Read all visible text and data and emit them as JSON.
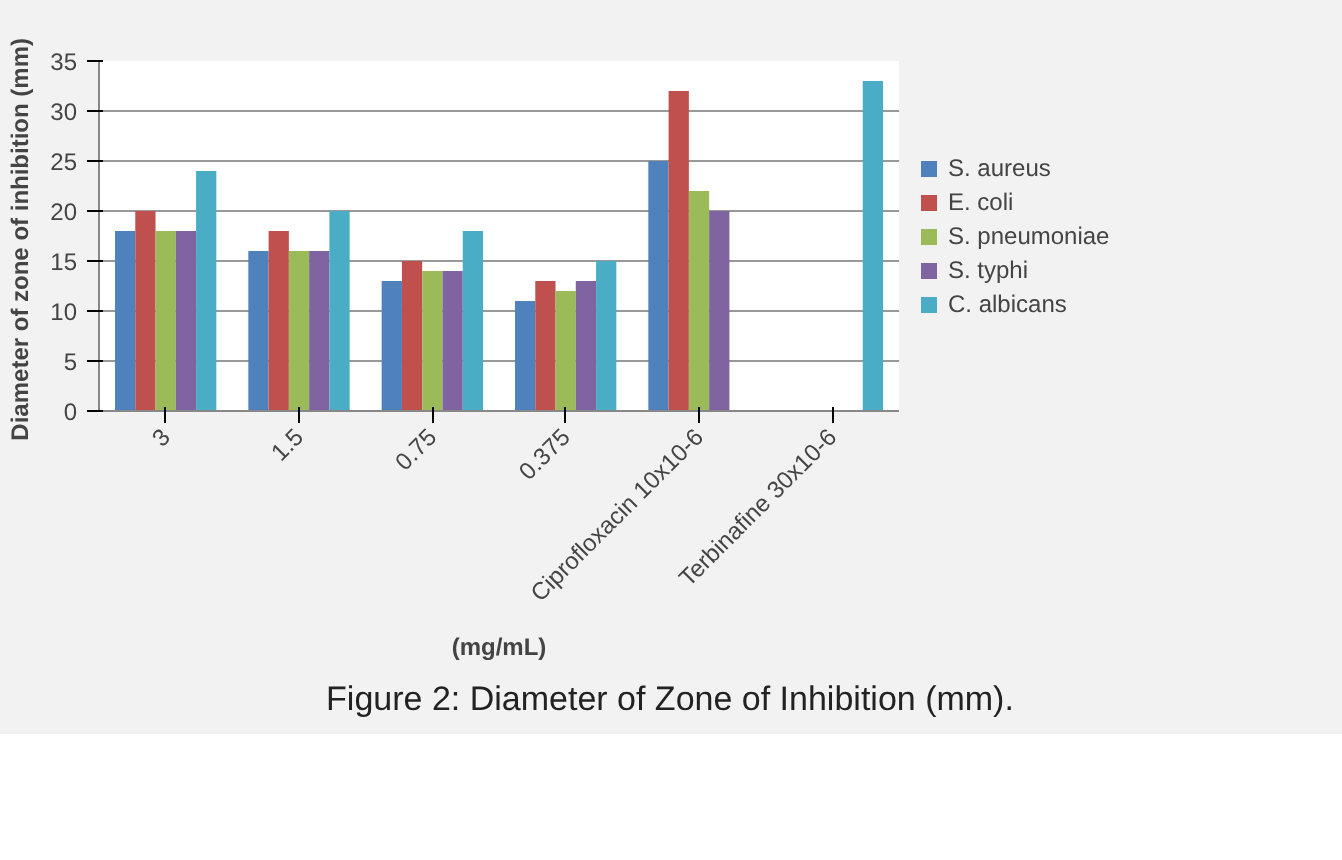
{
  "chart_data": {
    "type": "bar",
    "xlabel": "(mg/mL)",
    "ylabel": "Diameter of zone of inhibition  (mm)",
    "categories": [
      "3",
      "1.5",
      "0.75",
      "0.375",
      "Ciprofloxacin 10x10-6",
      "Terbinafine 30x10-6"
    ],
    "series": [
      {
        "name": "S. aureus",
        "color": "#4f81bd",
        "values": [
          18,
          16,
          13,
          11,
          25,
          null
        ]
      },
      {
        "name": "E. coli",
        "color": "#c0504d",
        "values": [
          20,
          18,
          15,
          13,
          32,
          null
        ]
      },
      {
        "name": "S. pneumoniae",
        "color": "#9bbb59",
        "values": [
          18,
          16,
          14,
          12,
          22,
          null
        ]
      },
      {
        "name": "S. typhi",
        "color": "#8064a2",
        "values": [
          18,
          16,
          14,
          13,
          20,
          null
        ]
      },
      {
        "name": "C. albicans",
        "color": "#4bacc6",
        "values": [
          24,
          20,
          18,
          15,
          null,
          33
        ]
      }
    ],
    "ylim": [
      0,
      35
    ],
    "yticks": [
      0,
      5,
      10,
      15,
      20,
      25,
      30,
      35
    ],
    "grid": "y",
    "legend": "right",
    "annotations": [
      "Figure 2: Diameter of Zone of Inhibition (mm)."
    ]
  }
}
